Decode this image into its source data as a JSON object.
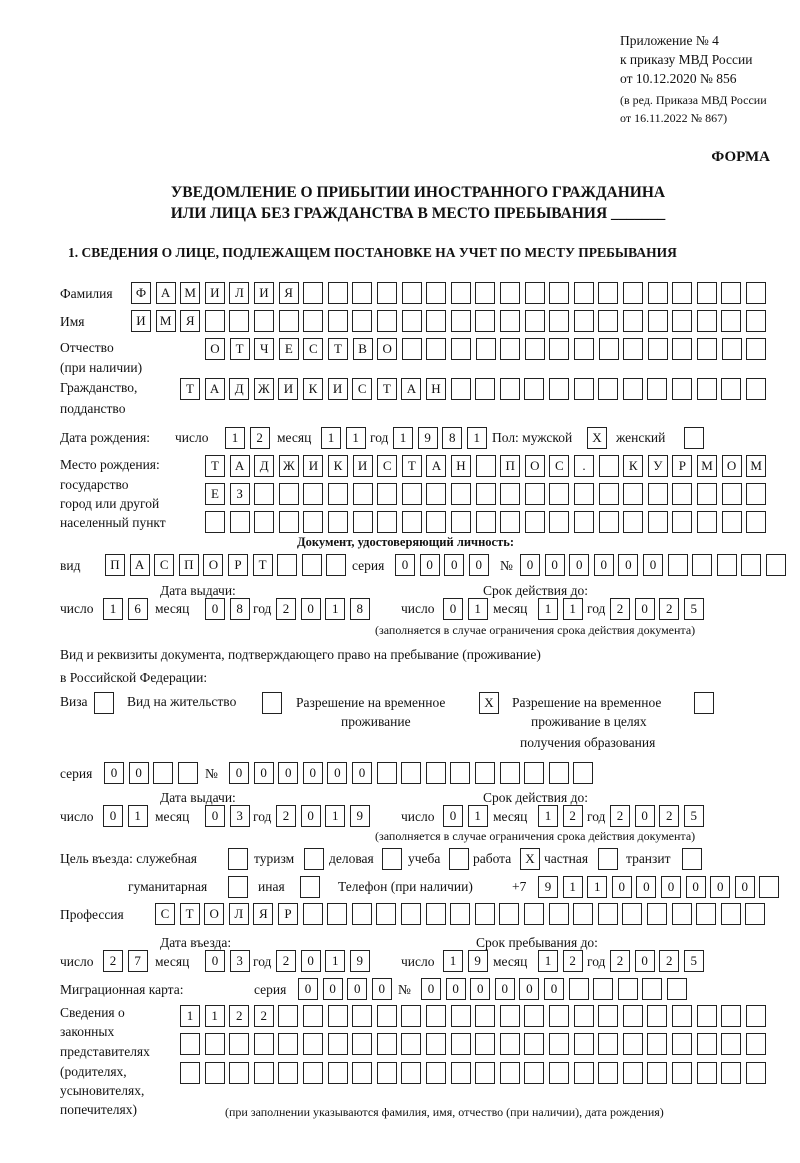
{
  "header": {
    "appendix": "Приложение № 4",
    "order": "к приказу МВД России",
    "order_date": "от 10.12.2020 № 856",
    "edition_1": "(в ред. Приказа МВД России",
    "edition_2": "от 16.11.2022 № 867)",
    "form_label": "ФОРМА",
    "title_1": "УВЕДОМЛЕНИЕ О ПРИБЫТИИ ИНОСТРАННОГО ГРАЖДАНИНА",
    "title_2": "ИЛИ ЛИЦА БЕЗ ГРАЖДАНСТВА В МЕСТО ПРЕБЫВАНИЯ _______"
  },
  "section1": {
    "heading": "1. СВЕДЕНИЯ О ЛИЦЕ, ПОДЛЕЖАЩЕМ ПОСТАНОВКЕ НА УЧЕТ ПО МЕСТУ ПРЕБЫВАНИЯ"
  },
  "person": {
    "surname_label": "Фамилия",
    "surname": "ФАМИЛИЯ",
    "name_label": "Имя",
    "name": "ИМЯ",
    "patronymic_label_1": "Отчество",
    "patronymic_label_2": "(при наличии)",
    "patronymic": "ОТЧЕСТВО",
    "citizenship_label_1": "Гражданство,",
    "citizenship_label_2": "подданство",
    "citizenship": "ТАДЖИКИСТАН",
    "birth_date_label": "Дата рождения:",
    "day_label": "число",
    "month_label": "месяц",
    "year_label": "год",
    "birth_day": "12",
    "birth_month": "11",
    "birth_year": "1981",
    "sex_label": "Пол: мужской",
    "female_label": "женский",
    "male_checked": "X",
    "female_checked": "",
    "birthplace_label_1": "Место рождения:",
    "birthplace_label_2": "государство",
    "birthplace_label_3": "город или другой",
    "birthplace_label_4": "населенный пункт",
    "birthplace_line_1": "ТАДЖИКИСТАН ПОС. КУРМОМБ",
    "birthplace_line_2": "ЕЗ",
    "birthplace_line_3": ""
  },
  "id_document": {
    "heading": "Документ, удостоверяющий личность:",
    "kind_label": "вид",
    "kind": "ПАСПОРТ",
    "series_label": "серия",
    "series": "0000",
    "number_label": "№",
    "number": "000000",
    "issue_label": "Дата выдачи:",
    "valid_label": "Срок действия до:",
    "day_label": "число",
    "month_label": "месяц",
    "year_label": "год",
    "issue_day": "16",
    "issue_month": "08",
    "issue_year": "2018",
    "valid_day": "01",
    "valid_month": "11",
    "valid_year": "2025",
    "note": "(заполняется в случае ограничения срока действия документа)"
  },
  "stay_document": {
    "label_1": "Вид и реквизиты документа, подтверждающего право на пребывание (проживание)",
    "label_2": "в Российской Федерации:",
    "visa_label": "Виза",
    "visa": "",
    "residence_label": "Вид на жительство",
    "residence": "",
    "temp_label_1": "Разрешение на временное",
    "temp_label_2": "проживание",
    "temp": "X",
    "edu_label_1": "Разрешение на временное",
    "edu_label_2": "проживание в целях",
    "edu_label_3": "получения образования",
    "edu": "",
    "series_label": "серия",
    "series": "00",
    "number_label": "№",
    "number": "000000",
    "issue_label": "Дата выдачи:",
    "valid_label": "Срок действия до:",
    "day_label": "число",
    "month_label": "месяц",
    "year_label": "год",
    "issue_day": "01",
    "issue_month": "03",
    "issue_year": "2019",
    "valid_day": "01",
    "valid_month": "12",
    "valid_year": "2025",
    "note": "(заполняется в случае ограничения срока действия документа)"
  },
  "purpose": {
    "label": "Цель въезда: служебная",
    "service": "",
    "tourism_label": "туризм",
    "tourism": "",
    "business_label": "деловая",
    "business": "",
    "study_label": "учеба",
    "study": "",
    "work_label": "работа",
    "work": "X",
    "private_label": "частная",
    "private": "",
    "transit_label": "транзит",
    "transit": "",
    "humanitarian_label": "гуманитарная",
    "humanitarian": "",
    "other_label": "иная",
    "other": ""
  },
  "phone": {
    "label": "Телефон (при наличии)",
    "prefix": "+7",
    "value": "911000000"
  },
  "profession": {
    "label": "Профессия",
    "value": "СТОЛЯР"
  },
  "entry": {
    "entry_label": "Дата въезда:",
    "stay_until_label": "Срок пребывания до:",
    "day_label": "число",
    "month_label": "месяц",
    "year_label": "год",
    "entry_day": "27",
    "entry_month": "03",
    "entry_year": "2019",
    "until_day": "19",
    "until_month": "12",
    "until_year": "2025"
  },
  "migration_card": {
    "label": "Миграционная карта:",
    "series_label": "серия",
    "series": "0000",
    "number_label": "№",
    "number": "000000"
  },
  "representatives": {
    "label_1": "Сведения о",
    "label_2": "законных",
    "label_3": "представителях",
    "label_4": "(родителях,",
    "label_5": "усыновителях,",
    "label_6": "попечителях)",
    "line_1": "1122",
    "line_2": "",
    "line_3": "",
    "note": "(при заполнении указываются фамилия, имя, отчество (при наличии), дата рождения)"
  }
}
